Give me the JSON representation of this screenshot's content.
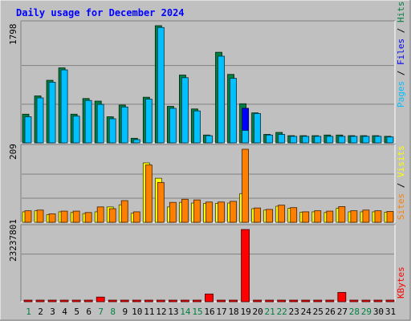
{
  "chart_data": [
    {
      "type": "bar",
      "title": "Daily usage for December 2024",
      "categories": [
        "1",
        "2",
        "3",
        "4",
        "5",
        "6",
        "7",
        "8",
        "9",
        "10",
        "11",
        "12",
        "13",
        "14",
        "15",
        "16",
        "17",
        "18",
        "19",
        "20",
        "21",
        "22",
        "23",
        "24",
        "25",
        "26",
        "27",
        "28",
        "29",
        "30",
        "31"
      ],
      "weekend_days": [
        "1",
        "7",
        "8",
        "14",
        "15",
        "21",
        "22",
        "28",
        "29"
      ],
      "ymax_label": "1798",
      "ylim": [
        0,
        1798
      ],
      "series": [
        {
          "name": "Hits",
          "color": "#008040",
          "values": [
            440,
            720,
            960,
            1150,
            440,
            680,
            640,
            400,
            580,
            70,
            700,
            1798,
            560,
            1040,
            520,
            120,
            1390,
            1050,
            600,
            460,
            130,
            160,
            110,
            110,
            110,
            120,
            120,
            110,
            110,
            110,
            100
          ]
        },
        {
          "name": "Files",
          "color": "#0000ff",
          "values": [
            0,
            0,
            0,
            0,
            0,
            0,
            0,
            0,
            0,
            0,
            0,
            0,
            0,
            0,
            0,
            0,
            0,
            0,
            530,
            0,
            0,
            0,
            0,
            0,
            0,
            0,
            0,
            0,
            0,
            0,
            0
          ]
        },
        {
          "name": "Pages",
          "color": "#00c0ff",
          "values": [
            400,
            690,
            930,
            1120,
            410,
            650,
            590,
            370,
            550,
            50,
            670,
            1770,
            530,
            1000,
            490,
            110,
            1330,
            990,
            190,
            450,
            120,
            130,
            100,
            100,
            100,
            100,
            100,
            100,
            100,
            100,
            90
          ]
        }
      ]
    },
    {
      "type": "bar",
      "categories": [
        "1",
        "2",
        "3",
        "4",
        "5",
        "6",
        "7",
        "8",
        "9",
        "10",
        "11",
        "12",
        "13",
        "14",
        "15",
        "16",
        "17",
        "18",
        "19",
        "20",
        "21",
        "22",
        "23",
        "24",
        "25",
        "26",
        "27",
        "28",
        "29",
        "30",
        "31"
      ],
      "ymax_label": "209",
      "ylim": [
        0,
        209
      ],
      "series": [
        {
          "name": "Visits",
          "color": "#ffff00",
          "values": [
            30,
            33,
            22,
            30,
            28,
            25,
            30,
            44,
            50,
            26,
            170,
            126,
            44,
            57,
            55,
            54,
            54,
            55,
            82,
            39,
            35,
            46,
            40,
            29,
            30,
            28,
            40,
            30,
            30,
            30,
            29
          ]
        },
        {
          "name": "Sites",
          "color": "#ff8000",
          "values": [
            33,
            35,
            24,
            32,
            32,
            28,
            44,
            39,
            62,
            30,
            164,
            114,
            57,
            66,
            64,
            58,
            58,
            60,
            209,
            41,
            37,
            49,
            42,
            30,
            33,
            32,
            45,
            33,
            35,
            33,
            31
          ]
        }
      ]
    },
    {
      "type": "bar",
      "categories": [
        "1",
        "2",
        "3",
        "4",
        "5",
        "6",
        "7",
        "8",
        "9",
        "10",
        "11",
        "12",
        "13",
        "14",
        "15",
        "16",
        "17",
        "18",
        "19",
        "20",
        "21",
        "22",
        "23",
        "24",
        "25",
        "26",
        "27",
        "28",
        "29",
        "30",
        "31"
      ],
      "ymax_label": "23237801",
      "ylim": [
        0,
        23237801
      ],
      "series": [
        {
          "name": "KBytes",
          "color": "#ff0000",
          "values": [
            200000,
            200000,
            200000,
            200000,
            200000,
            200000,
            1500000,
            200000,
            450000,
            200000,
            450000,
            200000,
            200000,
            200000,
            200000,
            2500000,
            200000,
            200000,
            23237801,
            200000,
            200000,
            200000,
            450000,
            200000,
            200000,
            200000,
            3000000,
            200000,
            200000,
            200000,
            200000
          ]
        }
      ]
    }
  ]
}
